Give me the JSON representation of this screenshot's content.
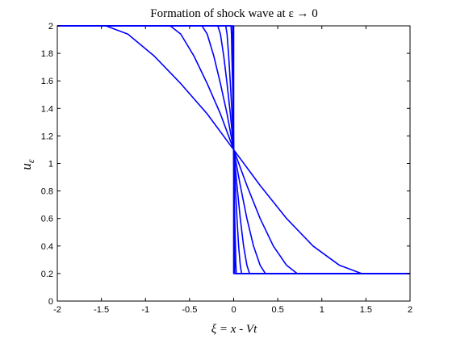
{
  "chart_data": {
    "type": "line",
    "title": "Formation of shock wave at ε → 0",
    "xlabel": "ξ = x - Vt",
    "ylabel": "u_ε",
    "ylabel_main": "u",
    "ylabel_sub": "ε",
    "xlim": [
      -2,
      2
    ],
    "ylim": [
      0,
      2
    ],
    "xticks": [
      -2,
      -1.5,
      -1,
      -0.5,
      0,
      0.5,
      1,
      1.5,
      2
    ],
    "xtick_labels": [
      "-2",
      "-1.5",
      "-1",
      "-0.5",
      "0",
      "0.5",
      "1",
      "1.5",
      "2"
    ],
    "yticks": [
      0,
      0.2,
      0.4,
      0.6,
      0.8,
      1,
      1.2,
      1.4,
      1.6,
      1.8,
      2
    ],
    "ytick_labels": [
      "0",
      "0.2",
      "0.4",
      "0.6",
      "0.8",
      "1",
      "1.2",
      "1.4",
      "1.6",
      "1.8",
      "2"
    ],
    "grid": false,
    "line_color": "#0000ff",
    "left_state": 2.0,
    "right_state": 0.2,
    "shock_position": 0,
    "series": [
      {
        "epsilon": 0.45,
        "x": [
          -2,
          -1.45,
          -1.2,
          -0.9,
          -0.6,
          -0.3,
          0,
          0.3,
          0.6,
          0.9,
          1.2,
          1.45,
          2
        ],
        "y": [
          2,
          2,
          1.94,
          1.78,
          1.58,
          1.36,
          1.1,
          0.84,
          0.6,
          0.4,
          0.26,
          0.2,
          0.2
        ]
      },
      {
        "epsilon": 0.22,
        "x": [
          -2,
          -0.72,
          -0.6,
          -0.45,
          -0.3,
          -0.15,
          0,
          0.15,
          0.3,
          0.45,
          0.6,
          0.72,
          2
        ],
        "y": [
          2,
          2,
          1.94,
          1.78,
          1.58,
          1.36,
          1.1,
          0.84,
          0.6,
          0.4,
          0.26,
          0.2,
          0.2
        ]
      },
      {
        "epsilon": 0.11,
        "x": [
          -2,
          -0.36,
          -0.3,
          -0.225,
          -0.15,
          -0.075,
          0,
          0.075,
          0.15,
          0.225,
          0.3,
          0.36,
          2
        ],
        "y": [
          2,
          2,
          1.94,
          1.78,
          1.58,
          1.36,
          1.1,
          0.84,
          0.6,
          0.4,
          0.26,
          0.2,
          0.2
        ]
      },
      {
        "epsilon": 0.055,
        "x": [
          -2,
          -0.18,
          -0.15,
          -0.1125,
          -0.075,
          -0.0375,
          0,
          0.0375,
          0.075,
          0.1125,
          0.15,
          0.18,
          2
        ],
        "y": [
          2,
          2,
          1.94,
          1.78,
          1.58,
          1.36,
          1.1,
          0.84,
          0.6,
          0.4,
          0.26,
          0.2,
          0.2
        ]
      },
      {
        "epsilon": 0.0275,
        "x": [
          -2,
          -0.09,
          -0.075,
          -0.05625,
          -0.0375,
          -0.01875,
          0,
          0.01875,
          0.0375,
          0.05625,
          0.075,
          0.09,
          2
        ],
        "y": [
          2,
          2,
          1.94,
          1.78,
          1.58,
          1.36,
          1.1,
          0.84,
          0.6,
          0.4,
          0.26,
          0.2,
          0.2
        ]
      },
      {
        "epsilon": 0.01,
        "x": [
          -2,
          -0.03,
          -0.025,
          -0.02,
          -0.012,
          -0.006,
          0,
          0.006,
          0.012,
          0.02,
          0.025,
          0.03,
          2
        ],
        "y": [
          2,
          2,
          1.94,
          1.78,
          1.58,
          1.36,
          1.1,
          0.84,
          0.6,
          0.4,
          0.26,
          0.2,
          0.2
        ]
      },
      {
        "epsilon": 0.004,
        "x": [
          -2,
          -0.012,
          -0.006,
          0,
          0.006,
          0.012,
          2
        ],
        "y": [
          2,
          2,
          1.6,
          1.1,
          0.6,
          0.2,
          0.2
        ]
      },
      {
        "epsilon": 0.0,
        "x": [
          -2,
          0,
          0,
          2
        ],
        "y": [
          2,
          2,
          0.2,
          0.2
        ]
      }
    ]
  }
}
